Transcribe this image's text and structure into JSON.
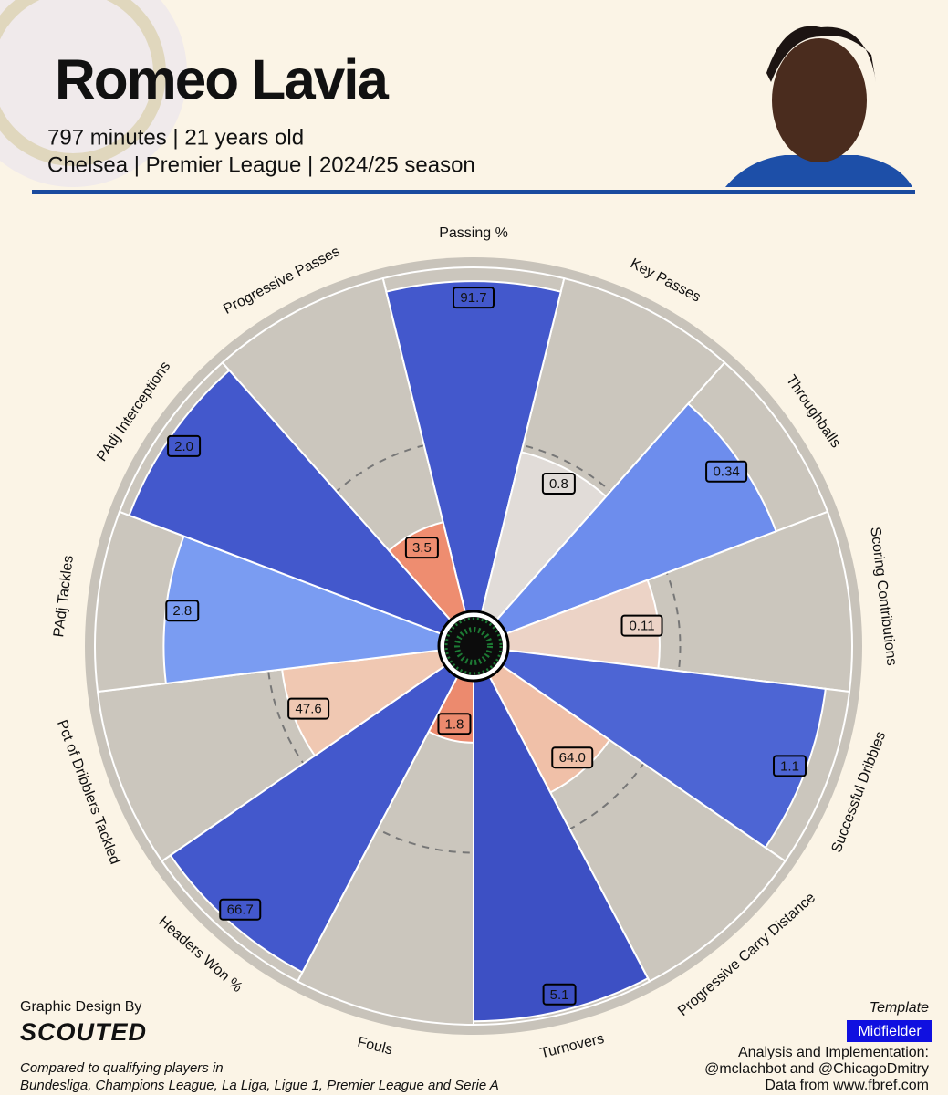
{
  "header": {
    "title": "Romeo Lavia",
    "subtitle_lines": [
      "797 minutes | 21 years old",
      "Chelsea | Premier League | 2024/25 season"
    ]
  },
  "chart_data": {
    "type": "pizza",
    "categories": [
      "Passing %",
      "Key Passes",
      "Throughballs",
      "Scoring Contributions",
      "Successful Dribbles",
      "Progressive Carry Distance",
      "Turnovers",
      "Fouls",
      "Headers Won %",
      "Pct of Dribblers Tackled",
      "PAdj Tackles",
      "PAdj Interceptions",
      "Progressive Passes"
    ],
    "values": [
      91.7,
      0.8,
      0.34,
      0.11,
      1.1,
      64,
      5.1,
      1.8,
      66.7,
      47.6,
      2.8,
      2,
      3.5
    ],
    "value_labels": [
      "91.7",
      "0.8",
      "0.34",
      "0.11",
      "1.1",
      "64.0",
      "5.1",
      "1.8",
      "66.7",
      "47.6",
      "2.8",
      "2.0",
      "3.5"
    ],
    "percentiles": [
      96,
      48,
      84,
      44,
      93,
      38,
      99,
      18,
      97,
      46,
      80,
      97,
      27
    ],
    "colors": [
      "#4358cc",
      "#e1dcd8",
      "#6d8ded",
      "#ecd3c6",
      "#4d65d4",
      "#f0c0a8",
      "#3d50c4",
      "#ec8a6e",
      "#4358cc",
      "#f0c8b2",
      "#7a9cf2",
      "#4358cc",
      "#ee8d70"
    ],
    "rlim": [
      0,
      100
    ],
    "reference_circle": 50
  },
  "footer": {
    "design_by": "Graphic Design By",
    "brand": "SCOUTED",
    "comparison": [
      "Compared to qualifying players in",
      "Bundesliga, Champions League, La Liga, Ligue 1, Premier League and Serie A"
    ],
    "template_label": "Template",
    "template": "Midfielder",
    "credits": [
      "Analysis and Implementation:",
      "@mclachbot and @ChicagoDmitry",
      "Data from www.fbref.com"
    ]
  }
}
